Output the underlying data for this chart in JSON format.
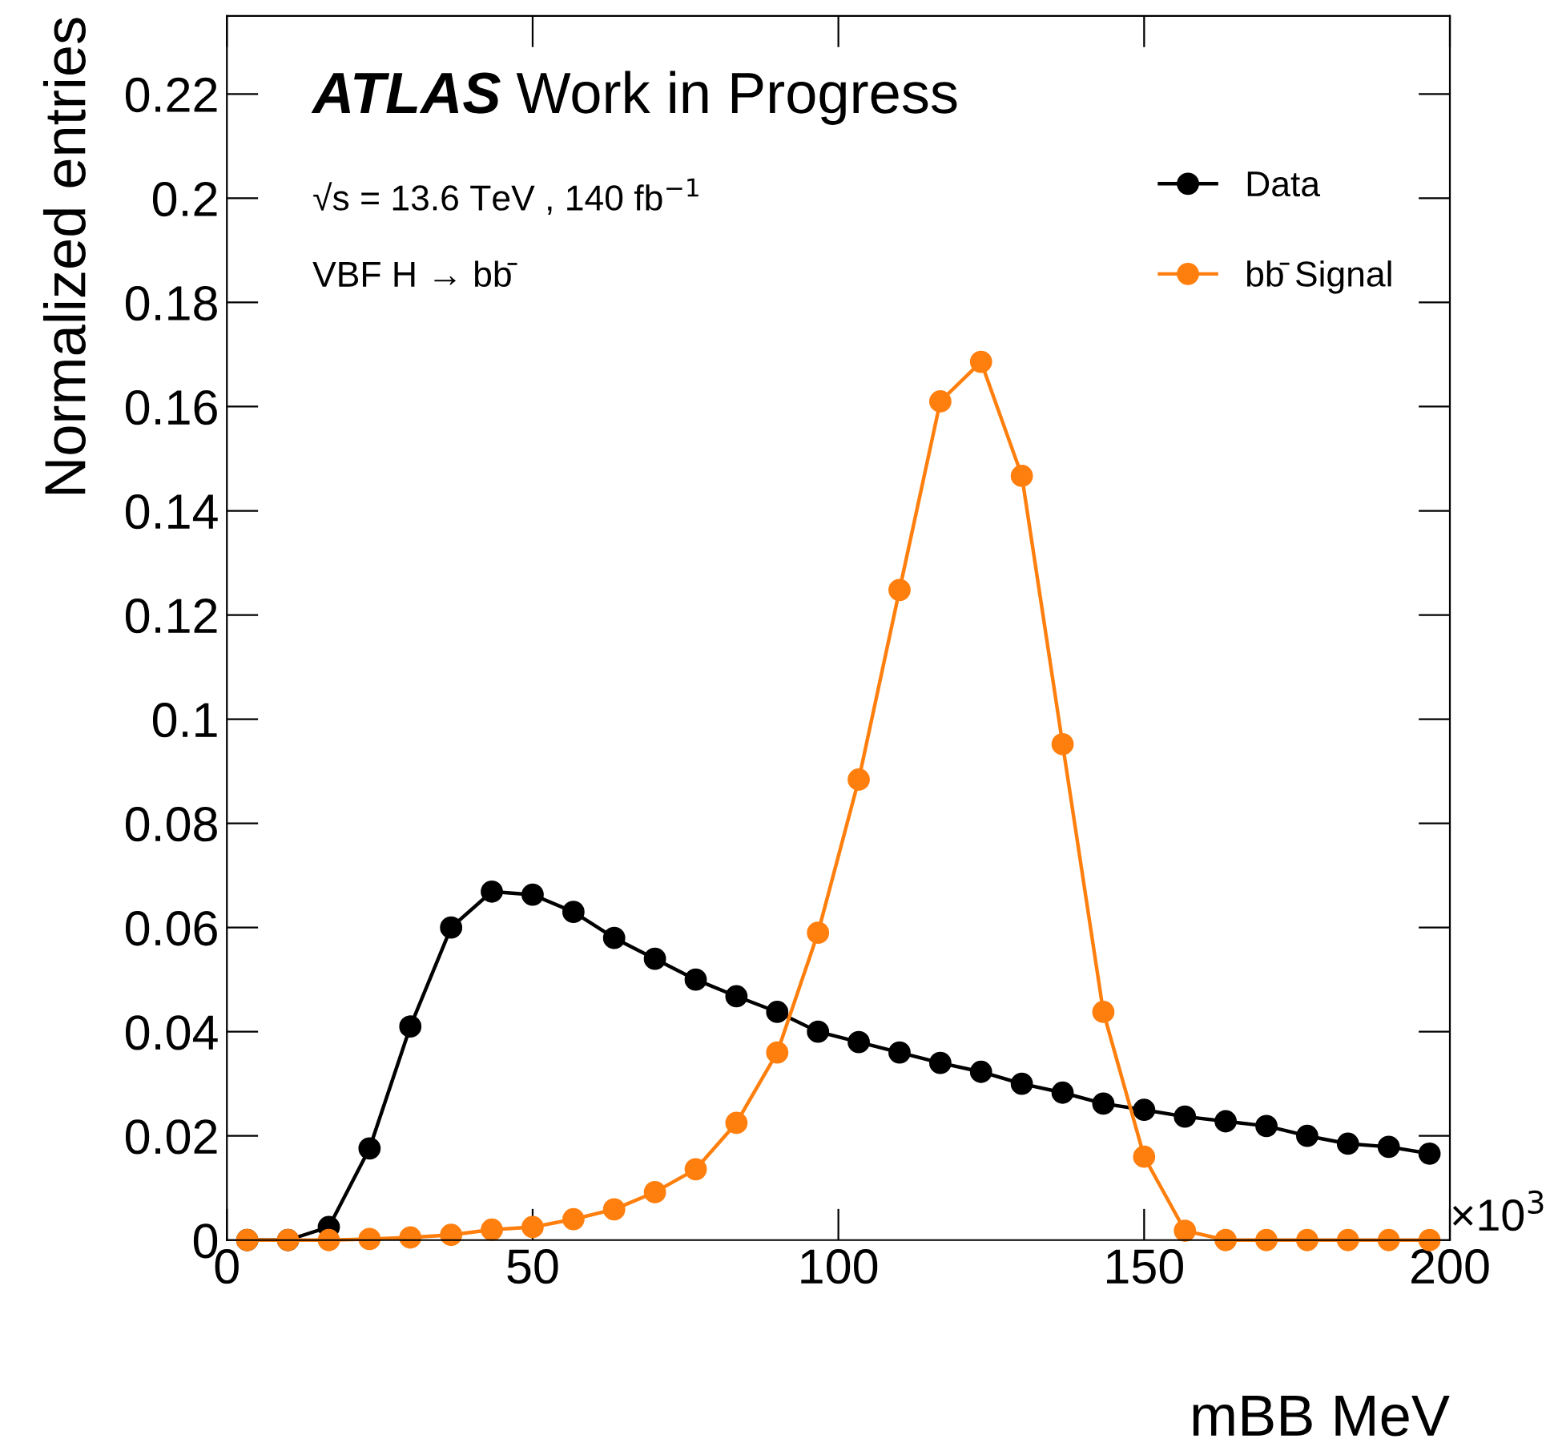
{
  "chart_data": {
    "type": "line",
    "xlabel": "mBB MeV",
    "ylabel": "Normalized entries",
    "annotations": [
      "ATLAS",
      "Work in Progress",
      "√s = 13.6 TeV , 140 fb$^{−1}$",
      "VBF H → bb̄",
      "×10$^{3}$"
    ],
    "x": [
      3.33,
      10,
      16.67,
      23.33,
      30,
      36.67,
      43.33,
      50,
      56.67,
      63.33,
      70,
      76.67,
      83.33,
      90,
      96.67,
      103.33,
      110,
      116.67,
      123.33,
      130,
      136.67,
      143.33,
      150,
      156.67,
      163.33,
      170,
      176.67,
      183.33,
      190,
      196.67
    ],
    "series": [
      {
        "name": "Data",
        "color": "#000000",
        "values": [
          0,
          0,
          0.0025,
          0.0176,
          0.041,
          0.06,
          0.0669,
          0.0663,
          0.063,
          0.058,
          0.054,
          0.05,
          0.0468,
          0.0438,
          0.04,
          0.038,
          0.036,
          0.034,
          0.0323,
          0.03,
          0.0283,
          0.0262,
          0.025,
          0.0237,
          0.0228,
          0.0219,
          0.02,
          0.0185,
          0.0179,
          0.0166
        ]
      },
      {
        "name": "bb̄ Signal",
        "color": "#ff7f0e",
        "values": [
          0,
          0,
          0,
          0.0002,
          0.0005,
          0.001,
          0.002,
          0.0025,
          0.004,
          0.0059,
          0.0092,
          0.0136,
          0.0225,
          0.036,
          0.059,
          0.0884,
          0.1248,
          0.161,
          0.1686,
          0.1467,
          0.0952,
          0.0438,
          0.016,
          0.0018,
          0,
          0,
          0,
          0,
          0,
          0
        ]
      }
    ],
    "xlim": [
      0,
      200
    ],
    "xticks": [
      0,
      50,
      100,
      150,
      200
    ],
    "ylim": [
      0,
      0.235
    ],
    "yticks": [
      0,
      0.02,
      0.04,
      0.06,
      0.08,
      0.1,
      0.12,
      0.14,
      0.16,
      0.18,
      0.2,
      0.22
    ],
    "marker": "circle",
    "line_style": "solid",
    "grid": false,
    "legend": "top right"
  }
}
